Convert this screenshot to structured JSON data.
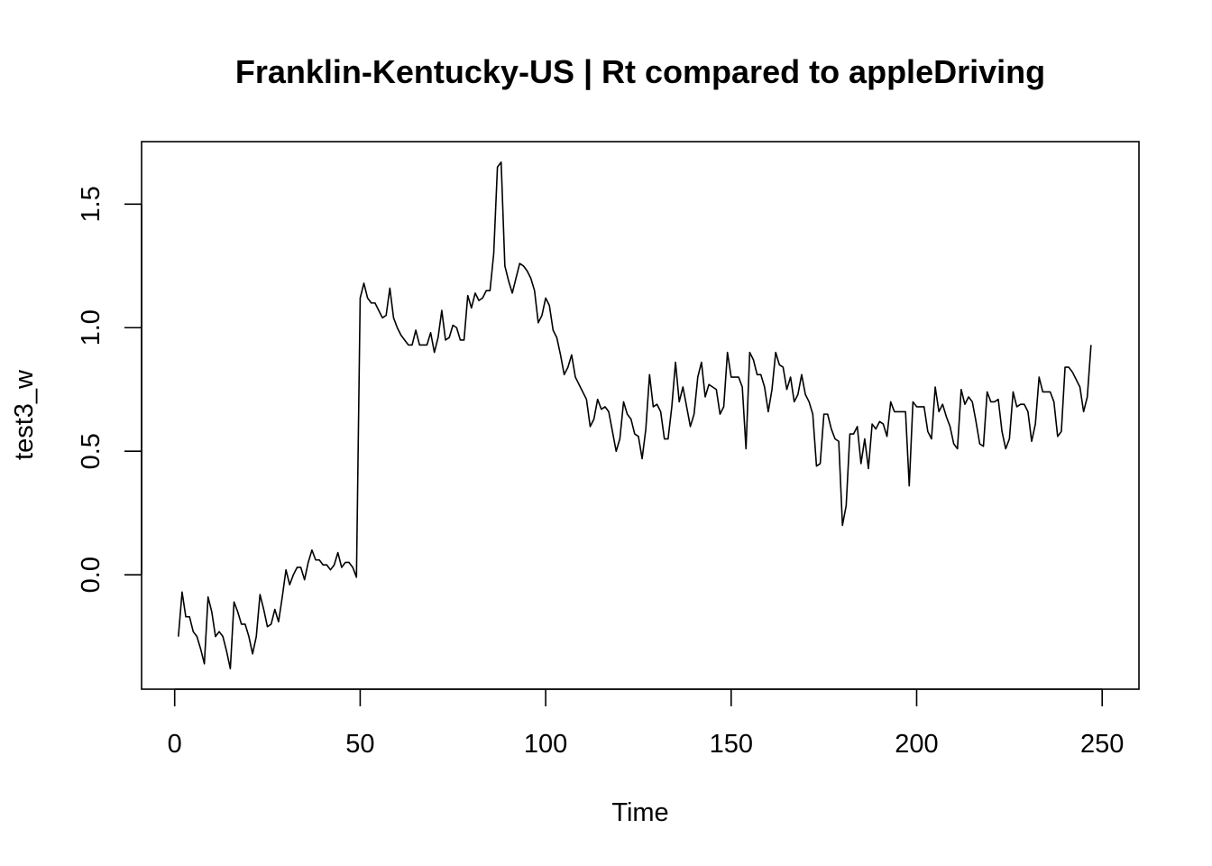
{
  "chart_data": {
    "type": "line",
    "title": "Franklin-Kentucky-US | Rt compared to appleDriving",
    "xlabel": "Time",
    "ylabel": "test3_w",
    "xlim": [
      -8.92,
      259.92
    ],
    "ylim": [
      -0.463,
      1.753
    ],
    "grid": false,
    "legend": "none",
    "x_ticks": [
      0,
      50,
      100,
      150,
      200,
      250
    ],
    "x_tick_labels": [
      "0",
      "50",
      "100",
      "150",
      "200",
      "250"
    ],
    "y_ticks": [
      0.0,
      0.5,
      1.0,
      1.5
    ],
    "y_tick_labels": [
      "0.0",
      "0.5",
      "1.0",
      "1.5"
    ],
    "line_color": "#000000",
    "series": [
      {
        "x_start": 1,
        "values": [
          -0.25,
          -0.07,
          -0.17,
          -0.17,
          -0.23,
          -0.25,
          -0.3,
          -0.36,
          -0.09,
          -0.15,
          -0.25,
          -0.23,
          -0.25,
          -0.31,
          -0.38,
          -0.11,
          -0.15,
          -0.2,
          -0.2,
          -0.25,
          -0.32,
          -0.25,
          -0.08,
          -0.14,
          -0.21,
          -0.2,
          -0.14,
          -0.19,
          -0.09,
          0.02,
          -0.04,
          0.0,
          0.03,
          0.03,
          -0.02,
          0.05,
          0.1,
          0.06,
          0.06,
          0.04,
          0.04,
          0.02,
          0.04,
          0.09,
          0.03,
          0.05,
          0.05,
          0.03,
          -0.01,
          1.12,
          1.18,
          1.12,
          1.1,
          1.1,
          1.07,
          1.04,
          1.05,
          1.16,
          1.04,
          1.0,
          0.97,
          0.95,
          0.93,
          0.93,
          0.99,
          0.93,
          0.93,
          0.93,
          0.98,
          0.9,
          0.96,
          1.07,
          0.95,
          0.96,
          1.01,
          1.0,
          0.95,
          0.95,
          1.13,
          1.08,
          1.14,
          1.11,
          1.12,
          1.15,
          1.15,
          1.3,
          1.65,
          1.67,
          1.25,
          1.19,
          1.14,
          1.2,
          1.26,
          1.25,
          1.23,
          1.2,
          1.15,
          1.02,
          1.05,
          1.12,
          1.09,
          0.99,
          0.96,
          0.89,
          0.81,
          0.84,
          0.89,
          0.8,
          0.77,
          0.74,
          0.71,
          0.6,
          0.63,
          0.71,
          0.67,
          0.68,
          0.66,
          0.58,
          0.5,
          0.55,
          0.7,
          0.65,
          0.63,
          0.57,
          0.56,
          0.47,
          0.59,
          0.81,
          0.68,
          0.69,
          0.66,
          0.55,
          0.55,
          0.68,
          0.86,
          0.7,
          0.76,
          0.68,
          0.6,
          0.65,
          0.8,
          0.86,
          0.72,
          0.77,
          0.76,
          0.75,
          0.65,
          0.68,
          0.9,
          0.8,
          0.8,
          0.8,
          0.76,
          0.51,
          0.9,
          0.87,
          0.81,
          0.81,
          0.76,
          0.66,
          0.75,
          0.9,
          0.85,
          0.84,
          0.75,
          0.8,
          0.7,
          0.73,
          0.81,
          0.73,
          0.7,
          0.65,
          0.44,
          0.45,
          0.65,
          0.65,
          0.59,
          0.55,
          0.54,
          0.2,
          0.28,
          0.57,
          0.57,
          0.6,
          0.45,
          0.55,
          0.43,
          0.61,
          0.59,
          0.62,
          0.61,
          0.56,
          0.7,
          0.66,
          0.66,
          0.66,
          0.66,
          0.36,
          0.7,
          0.68,
          0.68,
          0.68,
          0.58,
          0.55,
          0.76,
          0.66,
          0.69,
          0.64,
          0.6,
          0.53,
          0.51,
          0.75,
          0.69,
          0.72,
          0.7,
          0.62,
          0.53,
          0.52,
          0.74,
          0.7,
          0.7,
          0.71,
          0.58,
          0.51,
          0.55,
          0.74,
          0.68,
          0.69,
          0.69,
          0.66,
          0.54,
          0.61,
          0.8,
          0.74,
          0.74,
          0.74,
          0.7,
          0.56,
          0.58,
          0.84,
          0.84,
          0.82,
          0.79,
          0.76,
          0.66,
          0.72,
          0.93
        ]
      }
    ]
  }
}
